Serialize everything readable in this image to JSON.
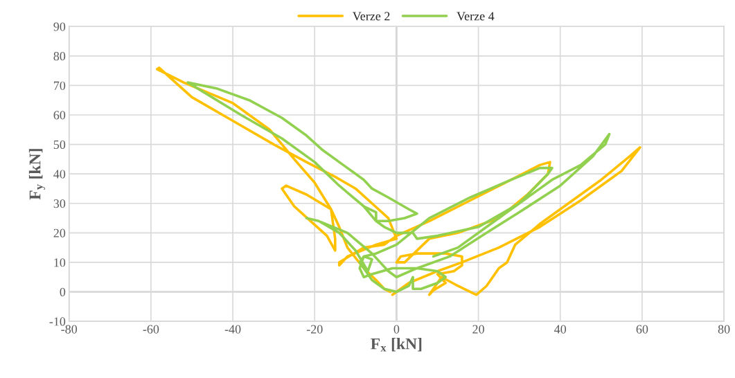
{
  "chart_data": {
    "type": "line",
    "xlabel": "F$_{x}$ [kN]",
    "ylabel": "F$_{y}$ [kN]",
    "xlim": [
      -80,
      80
    ],
    "xticks": [
      -80,
      -60,
      -40,
      -20,
      0,
      20,
      40,
      60,
      80
    ],
    "ylim": [
      -10,
      90
    ],
    "yticks": [
      -10,
      0,
      10,
      20,
      30,
      40,
      50,
      60,
      70,
      80,
      90
    ],
    "grid": true,
    "legend": "top",
    "marker": "none",
    "line_style": "solid",
    "series": [
      {
        "name": "Verze 2",
        "color": "#ffc000",
        "x": [
          -1,
          3,
          10,
          16,
          25,
          35,
          45,
          55,
          59.5,
          57,
          50,
          42,
          35,
          29,
          27,
          25,
          22,
          19.5,
          15,
          11,
          8,
          9,
          12,
          10,
          14,
          16,
          16,
          12,
          5,
          1,
          0,
          2,
          8,
          15,
          25,
          32,
          37,
          37.5,
          35,
          28,
          18,
          8,
          0,
          -3,
          -8,
          -14,
          -14,
          -12,
          -5,
          0,
          -2,
          -6,
          -10,
          -15,
          -22,
          -30,
          -40,
          -50,
          -58,
          -58.5,
          -52,
          -40,
          -31,
          -25,
          -20,
          -16,
          -15,
          -15,
          -17,
          -21,
          -25,
          -28,
          -27,
          -22,
          -16,
          -14,
          -12,
          -8,
          -5,
          -3,
          -1.5
        ],
        "values": [
          -1,
          3,
          7,
          10,
          15,
          22,
          31,
          41,
          49,
          46,
          38,
          30,
          23,
          16,
          10,
          8,
          2,
          -1,
          2,
          5,
          -1,
          0.5,
          3,
          6,
          7,
          9,
          12,
          13,
          13,
          12,
          10,
          10,
          18,
          20,
          25,
          33,
          40,
          44,
          43,
          38,
          31,
          24,
          19,
          16,
          15,
          10,
          9,
          12,
          16,
          18,
          25,
          30,
          35,
          39,
          44,
          50,
          58,
          66,
          76,
          75.5,
          71,
          64,
          55,
          45,
          37,
          28,
          18,
          14,
          19,
          24,
          29,
          35,
          36,
          33,
          28,
          22,
          15,
          8,
          4,
          1,
          0
        ]
      },
      {
        "name": "Verze 4",
        "color": "#92d050",
        "x": [
          -51,
          -44,
          -36,
          -28,
          -22,
          -18,
          -13,
          -8,
          -6,
          -2,
          3,
          5,
          2,
          -2,
          -5,
          -5,
          -8,
          -14,
          -20,
          -28,
          -38,
          -51,
          -38,
          -28,
          -20,
          -14,
          -8,
          -5,
          -3,
          0,
          4,
          5,
          10,
          20,
          30,
          37,
          38,
          35,
          28,
          18,
          8,
          0,
          -5,
          -8,
          -9,
          -8,
          -6,
          -1,
          5,
          10,
          12,
          10,
          6,
          4,
          4,
          3,
          0,
          -3,
          -6,
          -9,
          -8,
          -6,
          -7,
          -10,
          -14,
          -19,
          -22,
          -19,
          -12,
          -6,
          -2,
          0,
          5,
          13,
          22,
          30,
          40,
          48,
          52,
          51,
          45,
          38,
          30,
          22,
          15,
          9
        ],
        "values": [
          71,
          69,
          65,
          59,
          53,
          48,
          43,
          38,
          35,
          32,
          28,
          26.5,
          25,
          24,
          24,
          27,
          29,
          36,
          44,
          52,
          60,
          71,
          60,
          52,
          44,
          36,
          29,
          24,
          22,
          20,
          20,
          18,
          19,
          22,
          30,
          40,
          42,
          42,
          38,
          32,
          25,
          16,
          13,
          12,
          8,
          5,
          6,
          8,
          8,
          7,
          5,
          3,
          1,
          1,
          5,
          2,
          0,
          1,
          4,
          10,
          12,
          11,
          7,
          14,
          20,
          24,
          25,
          24,
          20,
          13,
          7,
          5,
          8,
          12,
          20,
          27,
          36,
          46,
          53.5,
          50,
          43,
          38,
          30,
          22,
          15,
          12
        ]
      }
    ]
  }
}
